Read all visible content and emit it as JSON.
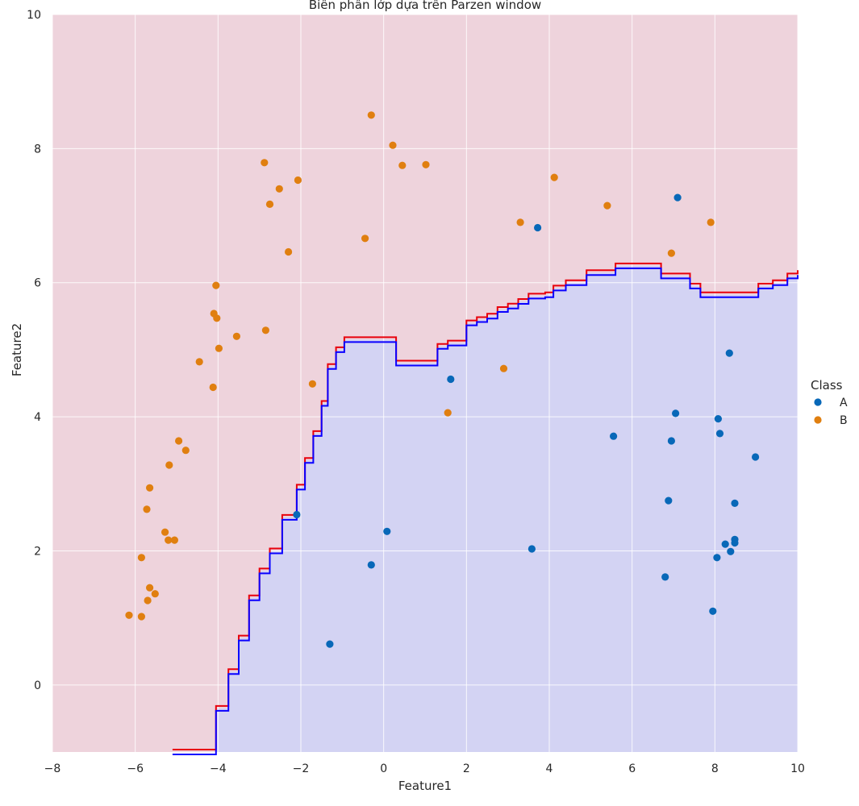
{
  "chart_data": {
    "type": "scatter",
    "title": "Biên phân lớp dựa trên Parzen window",
    "xlabel": "Feature1",
    "ylabel": "Feature2",
    "xlim": [
      -8,
      10
    ],
    "ylim": [
      -1,
      10
    ],
    "xticks": [
      -8,
      -6,
      -4,
      -2,
      0,
      2,
      4,
      6,
      8,
      10
    ],
    "yticks": [
      0,
      2,
      4,
      6,
      8,
      10
    ],
    "xtick_labels": [
      "−8",
      "−6",
      "−4",
      "−2",
      "0",
      "2",
      "4",
      "6",
      "8",
      "10"
    ],
    "ytick_labels": [
      "0",
      "2",
      "4",
      "6",
      "8",
      "10"
    ],
    "grid": true,
    "legend": {
      "title": "Class",
      "placement": "right"
    },
    "colors": {
      "A": "#0868b8",
      "B": "#e07f10",
      "region_B": "#eed3dc",
      "region_A": "#d3d3f3",
      "boundary_outer": "#e8000b",
      "boundary_inner": "#0a00ff",
      "grid": "#ffffff"
    },
    "series": [
      {
        "name": "A",
        "points": [
          [
            7.1,
            7.27
          ],
          [
            3.72,
            6.82
          ],
          [
            8.35,
            4.95
          ],
          [
            1.62,
            4.56
          ],
          [
            7.05,
            4.05
          ],
          [
            8.08,
            3.97
          ],
          [
            8.12,
            3.75
          ],
          [
            5.55,
            3.71
          ],
          [
            6.95,
            3.64
          ],
          [
            8.98,
            3.4
          ],
          [
            8.48,
            2.71
          ],
          [
            6.88,
            2.75
          ],
          [
            -2.1,
            2.54
          ],
          [
            0.08,
            2.29
          ],
          [
            8.48,
            2.17
          ],
          [
            8.48,
            2.12
          ],
          [
            8.25,
            2.1
          ],
          [
            3.58,
            2.03
          ],
          [
            8.38,
            1.99
          ],
          [
            8.05,
            1.9
          ],
          [
            -0.3,
            1.79
          ],
          [
            6.8,
            1.61
          ],
          [
            7.95,
            1.1
          ],
          [
            -1.3,
            0.61
          ]
        ]
      },
      {
        "name": "B",
        "points": [
          [
            -0.3,
            8.5
          ],
          [
            0.22,
            8.05
          ],
          [
            0.45,
            7.75
          ],
          [
            1.02,
            7.76
          ],
          [
            -2.88,
            7.79
          ],
          [
            -2.52,
            7.4
          ],
          [
            -2.07,
            7.53
          ],
          [
            -2.75,
            7.17
          ],
          [
            4.12,
            7.57
          ],
          [
            5.4,
            7.15
          ],
          [
            3.3,
            6.9
          ],
          [
            7.9,
            6.9
          ],
          [
            6.95,
            6.44
          ],
          [
            -0.45,
            6.66
          ],
          [
            -2.3,
            6.46
          ],
          [
            -4.05,
            5.96
          ],
          [
            -4.1,
            5.54
          ],
          [
            -4.03,
            5.47
          ],
          [
            -3.55,
            5.2
          ],
          [
            -2.85,
            5.29
          ],
          [
            -3.98,
            5.02
          ],
          [
            -4.45,
            4.82
          ],
          [
            -4.12,
            4.44
          ],
          [
            -1.72,
            4.49
          ],
          [
            2.9,
            4.72
          ],
          [
            1.55,
            4.06
          ],
          [
            -4.95,
            3.64
          ],
          [
            -4.78,
            3.5
          ],
          [
            -5.18,
            3.28
          ],
          [
            -5.65,
            2.94
          ],
          [
            -5.72,
            2.62
          ],
          [
            -5.28,
            2.28
          ],
          [
            -5.2,
            2.16
          ],
          [
            -5.05,
            2.16
          ],
          [
            -5.85,
            1.9
          ],
          [
            -5.65,
            1.45
          ],
          [
            -5.52,
            1.36
          ],
          [
            -5.7,
            1.26
          ],
          [
            -6.15,
            1.04
          ],
          [
            -5.85,
            1.02
          ]
        ]
      }
    ],
    "boundary": [
      [
        -5.1,
        -1.0
      ],
      [
        -4.05,
        -0.35
      ],
      [
        -3.75,
        0.2
      ],
      [
        -3.5,
        0.7
      ],
      [
        -3.25,
        1.3
      ],
      [
        -3.0,
        1.7
      ],
      [
        -2.75,
        2.0
      ],
      [
        -2.45,
        2.5
      ],
      [
        -2.1,
        2.95
      ],
      [
        -1.9,
        3.35
      ],
      [
        -1.7,
        3.75
      ],
      [
        -1.5,
        4.2
      ],
      [
        -1.35,
        4.75
      ],
      [
        -1.15,
        5.0
      ],
      [
        -0.95,
        5.15
      ],
      [
        -0.15,
        5.15
      ],
      [
        0.3,
        4.8
      ],
      [
        0.9,
        4.8
      ],
      [
        1.3,
        5.05
      ],
      [
        1.55,
        5.1
      ],
      [
        2.0,
        5.4
      ],
      [
        2.25,
        5.45
      ],
      [
        2.5,
        5.5
      ],
      [
        2.75,
        5.6
      ],
      [
        3.0,
        5.65
      ],
      [
        3.25,
        5.72
      ],
      [
        3.5,
        5.8
      ],
      [
        3.9,
        5.82
      ],
      [
        4.1,
        5.92
      ],
      [
        4.4,
        6.0
      ],
      [
        4.9,
        6.15
      ],
      [
        5.6,
        6.25
      ],
      [
        6.4,
        6.25
      ],
      [
        6.7,
        6.1
      ],
      [
        7.1,
        6.1
      ],
      [
        7.4,
        5.95
      ],
      [
        7.65,
        5.82
      ],
      [
        8.7,
        5.82
      ],
      [
        9.05,
        5.95
      ],
      [
        9.4,
        6.0
      ],
      [
        9.75,
        6.1
      ],
      [
        10.0,
        6.15
      ]
    ]
  }
}
